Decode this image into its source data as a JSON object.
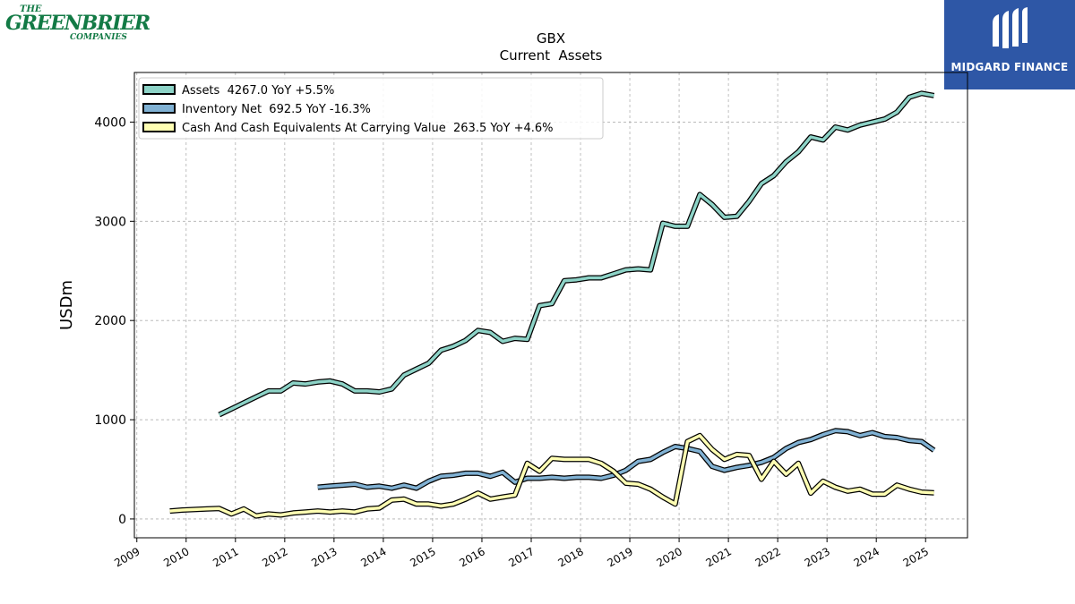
{
  "logos": {
    "left": {
      "the": "THE",
      "main": "GREENBRIER",
      "sub": "COMPANIES",
      "color": "#127a45"
    },
    "right": {
      "text": "MIDGARD FINANCE",
      "background": "#2e57a6"
    }
  },
  "chart_data": {
    "type": "line",
    "title": "GBX",
    "subtitle": "Current  Assets",
    "ylabel": "USDm",
    "xlabel": "",
    "xlim": [
      2008.95,
      2025.85
    ],
    "ylim": [
      -190,
      4500
    ],
    "yticks": [
      0,
      1000,
      2000,
      3000,
      4000
    ],
    "xticks": [
      "2009",
      "2010",
      "2011",
      "2012",
      "2013",
      "2014",
      "2015",
      "2016",
      "2017",
      "2018",
      "2019",
      "2020",
      "2021",
      "2022",
      "2023",
      "2024",
      "2025"
    ],
    "grid": true,
    "legend_position": "top-left",
    "series": [
      {
        "name": "Assets  4267.0 YoY +5.5%",
        "color": "#8dd3c7",
        "x": [
          2010.67,
          2010.92,
          2011.17,
          2011.42,
          2011.67,
          2011.92,
          2012.17,
          2012.42,
          2012.67,
          2012.92,
          2013.17,
          2013.42,
          2013.67,
          2013.92,
          2014.17,
          2014.42,
          2014.67,
          2014.92,
          2015.17,
          2015.42,
          2015.67,
          2015.92,
          2016.17,
          2016.42,
          2016.67,
          2016.92,
          2017.17,
          2017.42,
          2017.67,
          2017.92,
          2018.17,
          2018.42,
          2018.67,
          2018.92,
          2019.17,
          2019.42,
          2019.67,
          2019.92,
          2020.17,
          2020.42,
          2020.67,
          2020.92,
          2021.17,
          2021.42,
          2021.67,
          2021.92,
          2022.17,
          2022.42,
          2022.67,
          2022.92,
          2023.17,
          2023.42,
          2023.67,
          2023.92,
          2024.17,
          2024.42,
          2024.67,
          2024.92,
          2025.17
        ],
        "y": [
          1050,
          1110,
          1170,
          1230,
          1290,
          1290,
          1370,
          1360,
          1380,
          1390,
          1360,
          1290,
          1290,
          1280,
          1310,
          1450,
          1510,
          1570,
          1700,
          1740,
          1800,
          1900,
          1880,
          1790,
          1820,
          1810,
          2150,
          2170,
          2400,
          2410,
          2430,
          2430,
          2470,
          2510,
          2520,
          2510,
          2980,
          2950,
          2950,
          3270,
          3170,
          3040,
          3050,
          3200,
          3380,
          3460,
          3600,
          3700,
          3850,
          3820,
          3950,
          3920,
          3970,
          4000,
          4030,
          4100,
          4250,
          4290,
          4267
        ]
      },
      {
        "name": "Inventory Net  692.5 YoY -16.3%",
        "color": "#80b1d3",
        "x": [
          2012.67,
          2012.92,
          2013.17,
          2013.42,
          2013.67,
          2013.92,
          2014.17,
          2014.42,
          2014.67,
          2014.92,
          2015.17,
          2015.42,
          2015.67,
          2015.92,
          2016.17,
          2016.42,
          2016.67,
          2016.92,
          2017.17,
          2017.42,
          2017.67,
          2017.92,
          2018.17,
          2018.42,
          2018.67,
          2018.92,
          2019.17,
          2019.42,
          2019.67,
          2019.92,
          2020.17,
          2020.42,
          2020.67,
          2020.92,
          2021.17,
          2021.42,
          2021.67,
          2021.92,
          2022.17,
          2022.42,
          2022.67,
          2022.92,
          2023.17,
          2023.42,
          2023.67,
          2023.92,
          2024.17,
          2024.42,
          2024.67,
          2024.92,
          2025.17
        ],
        "y": [
          320,
          330,
          340,
          350,
          320,
          330,
          310,
          340,
          310,
          380,
          430,
          440,
          460,
          460,
          430,
          470,
          370,
          410,
          410,
          420,
          410,
          420,
          420,
          410,
          440,
          490,
          580,
          600,
          670,
          730,
          710,
          680,
          530,
          490,
          520,
          540,
          570,
          620,
          710,
          770,
          800,
          850,
          890,
          880,
          840,
          870,
          830,
          820,
          790,
          780,
          692
        ]
      },
      {
        "name": "Cash And Cash Equivalents At Carrying Value  263.5 YoY +4.6%",
        "color": "#ffffb3",
        "x": [
          2009.67,
          2009.92,
          2010.17,
          2010.42,
          2010.67,
          2010.92,
          2011.17,
          2011.42,
          2011.67,
          2011.92,
          2012.17,
          2012.42,
          2012.67,
          2012.92,
          2013.17,
          2013.42,
          2013.67,
          2013.92,
          2014.17,
          2014.42,
          2014.67,
          2014.92,
          2015.17,
          2015.42,
          2015.67,
          2015.92,
          2016.17,
          2016.42,
          2016.67,
          2016.92,
          2017.17,
          2017.42,
          2017.67,
          2017.92,
          2018.17,
          2018.42,
          2018.67,
          2018.92,
          2019.17,
          2019.42,
          2019.67,
          2019.92,
          2020.17,
          2020.42,
          2020.67,
          2020.92,
          2021.17,
          2021.42,
          2021.67,
          2021.92,
          2022.17,
          2022.42,
          2022.67,
          2022.92,
          2023.17,
          2023.42,
          2023.67,
          2023.92,
          2024.17,
          2024.42,
          2024.67,
          2024.92,
          2025.17
        ],
        "y": [
          80,
          90,
          95,
          100,
          105,
          50,
          100,
          30,
          50,
          40,
          60,
          70,
          80,
          70,
          80,
          70,
          100,
          110,
          190,
          200,
          150,
          150,
          130,
          150,
          200,
          260,
          200,
          220,
          240,
          560,
          480,
          610,
          600,
          600,
          600,
          560,
          480,
          360,
          350,
          300,
          220,
          150,
          780,
          840,
          700,
          600,
          650,
          640,
          400,
          580,
          450,
          560,
          260,
          380,
          320,
          280,
          300,
          250,
          250,
          340,
          300,
          270,
          263
        ]
      }
    ]
  }
}
